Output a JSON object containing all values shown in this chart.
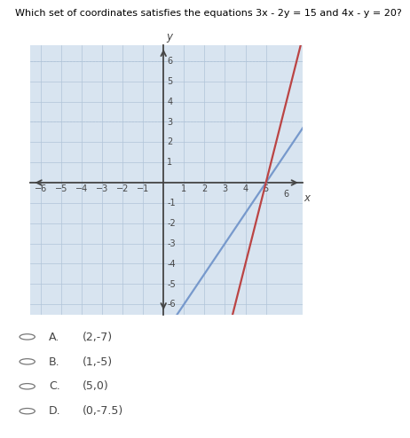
{
  "question_text": "Which set of coordinates satisfies the equations 3x - 2y = 15 and 4x - y = 20?",
  "xlim": [
    -6.5,
    6.8
  ],
  "ylim": [
    -6.5,
    6.8
  ],
  "xtick_vals": [
    -6,
    -5,
    -4,
    -3,
    -2,
    -1,
    1,
    2,
    3,
    4,
    5
  ],
  "ytick_vals": [
    -6,
    -5,
    -4,
    -3,
    -2,
    -1,
    1,
    2,
    3,
    4,
    5,
    6
  ],
  "line1_color": "#7799cc",
  "line2_color": "#bb4444",
  "bg_color": "#d8e4f0",
  "grid_color": "#b0c4d8",
  "axis_color": "#444444",
  "tick_color": "#444444",
  "choices": [
    [
      "A.",
      "(2,-7)"
    ],
    [
      "B.",
      "(1,-5)"
    ],
    [
      "C.",
      "(5,0)"
    ],
    [
      "D.",
      "(0,-7.5)"
    ]
  ],
  "question_fontsize": 8.0,
  "tick_fontsize": 7.0,
  "choice_letter_fontsize": 9.0,
  "choice_text_fontsize": 9.0,
  "axis_label_fontsize": 8.5
}
